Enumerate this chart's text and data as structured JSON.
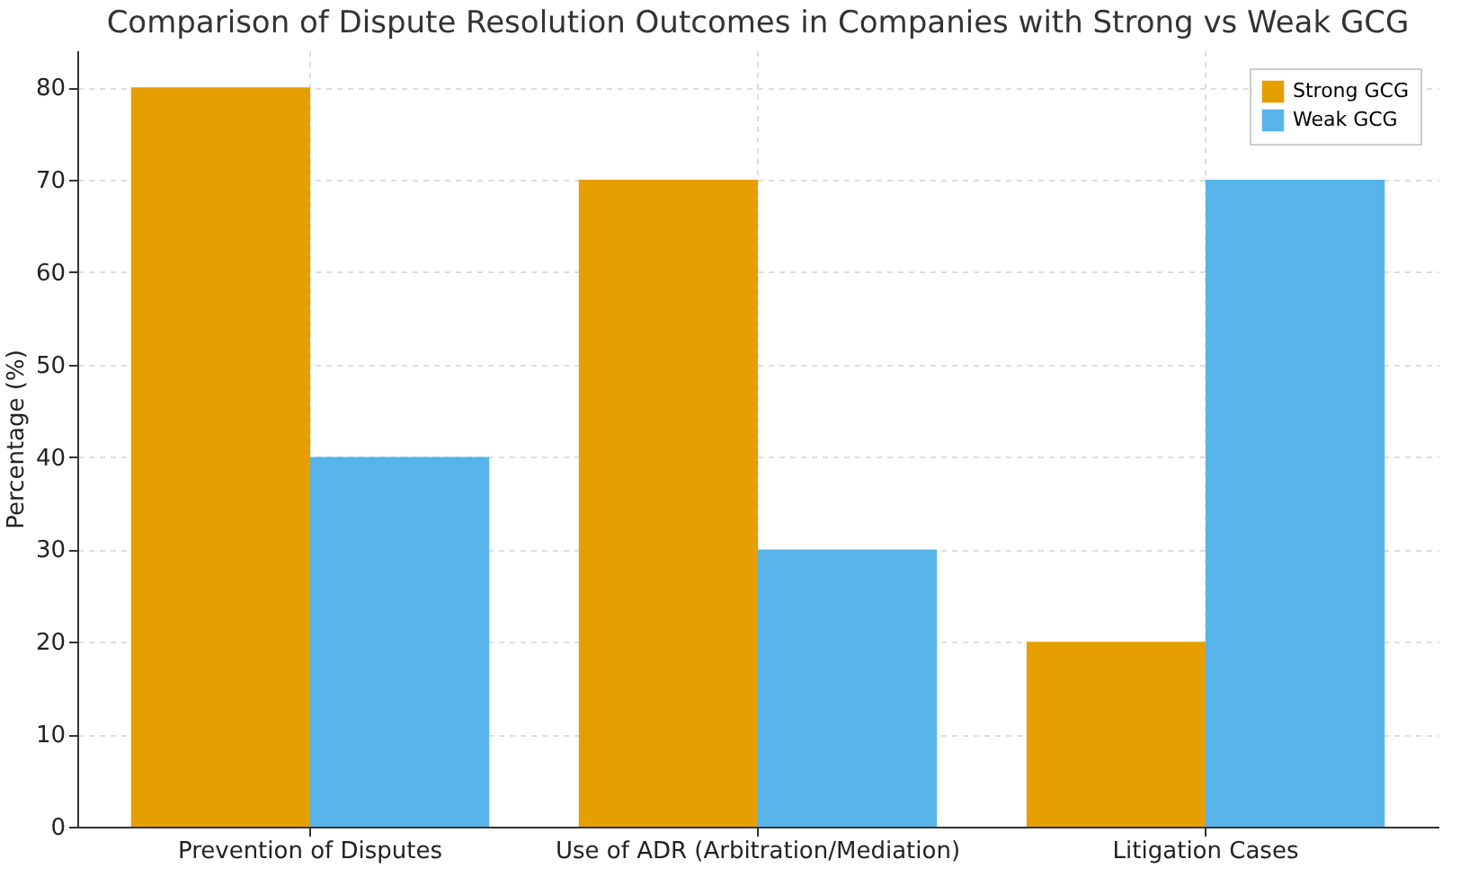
{
  "chart_data": {
    "type": "bar",
    "title": "Comparison of Dispute Resolution Outcomes in Companies with Strong vs Weak GCG",
    "ylabel": "Percentage (%)",
    "categories": [
      "Prevention of Disputes",
      "Use of ADR (Arbitration/Mediation)",
      "Litigation Cases"
    ],
    "series": [
      {
        "name": "Strong GCG",
        "color": "#e69f00",
        "values": [
          80,
          70,
          20
        ]
      },
      {
        "name": "Weak GCG",
        "color": "#56b4e9",
        "values": [
          40,
          30,
          70
        ]
      }
    ],
    "ylim": [
      0,
      84
    ],
    "yticks": [
      0,
      10,
      20,
      30,
      40,
      50,
      60,
      70,
      80
    ],
    "grid": true,
    "legend": "top right"
  }
}
